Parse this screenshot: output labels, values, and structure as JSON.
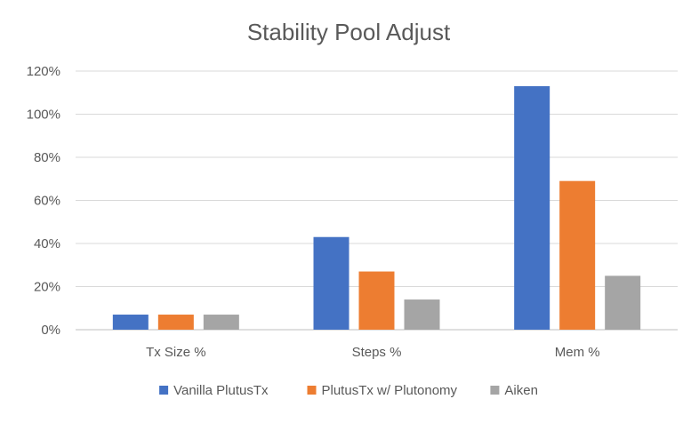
{
  "chart_data": {
    "type": "bar",
    "title": "Stability Pool Adjust",
    "xlabel": "",
    "ylabel": "",
    "categories": [
      "Tx Size %",
      "Steps %",
      "Mem %"
    ],
    "series": [
      {
        "name": "Vanilla PlutusTx",
        "color": "#4472C4",
        "values": [
          7,
          43,
          113
        ]
      },
      {
        "name": "PlutusTx w/ Plutonomy",
        "color": "#ED7D31",
        "values": [
          7,
          27,
          69
        ]
      },
      {
        "name": "Aiken",
        "color": "#A5A5A5",
        "values": [
          7,
          14,
          25
        ]
      }
    ],
    "ylim": [
      0,
      120
    ],
    "yticks": [
      0,
      20,
      40,
      60,
      80,
      100,
      120
    ],
    "ytick_labels": [
      "0%",
      "20%",
      "40%",
      "60%",
      "80%",
      "100%",
      "120%"
    ],
    "grid": true,
    "legend_position": "bottom"
  }
}
